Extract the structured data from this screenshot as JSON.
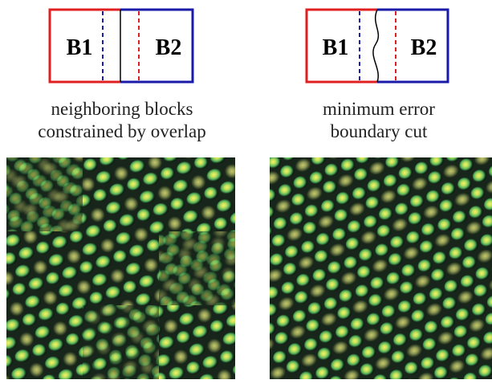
{
  "panels": [
    {
      "labels": [
        "B1",
        "B2"
      ],
      "caption": [
        "neighboring blocks",
        "constrained by overlap"
      ]
    },
    {
      "labels": [
        "B1",
        "B2"
      ],
      "caption": [
        "minimum error",
        "boundary cut"
      ]
    }
  ]
}
